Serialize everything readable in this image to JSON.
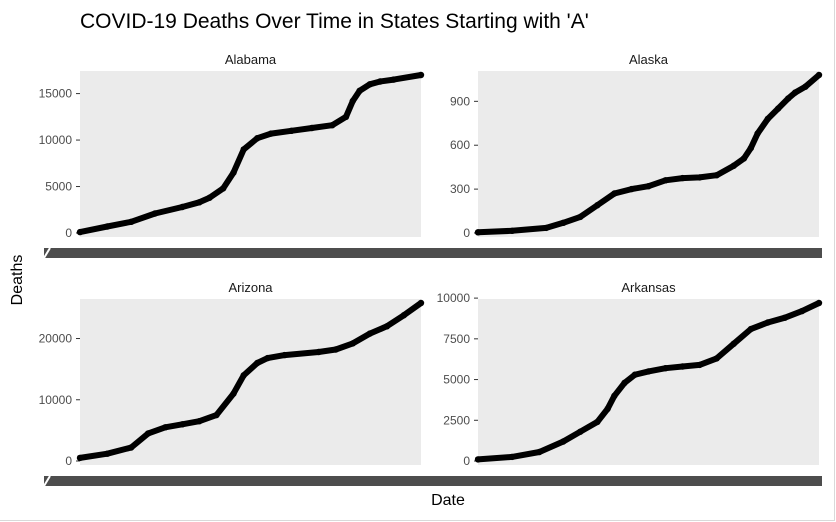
{
  "chart_data": {
    "type": "line",
    "title": "COVID-19 Deaths Over Time in States Starting with 'A'",
    "xlabel": "Date",
    "ylabel": "Deaths",
    "x_ticks_visible": false,
    "grid": false,
    "panel_background": "#ebebeb",
    "line_color": "#000000",
    "facets": [
      {
        "name": "Alabama",
        "ylim": [
          0,
          17000
        ],
        "yticks": [
          "0",
          "5000",
          "10000",
          "15000"
        ],
        "ytick_values": [
          0,
          5000,
          10000,
          15000
        ],
        "x": [
          0,
          0.08,
          0.15,
          0.22,
          0.3,
          0.35,
          0.38,
          0.42,
          0.45,
          0.48,
          0.52,
          0.56,
          0.62,
          0.68,
          0.74,
          0.78,
          0.8,
          0.82,
          0.85,
          0.88,
          0.92,
          1.0
        ],
        "values": [
          100,
          700,
          1200,
          2100,
          2800,
          3300,
          3800,
          4800,
          6500,
          9000,
          10200,
          10700,
          11000,
          11300,
          11600,
          12500,
          14200,
          15300,
          16000,
          16300,
          16500,
          17000
        ]
      },
      {
        "name": "Alaska",
        "ylim": [
          0,
          1080
        ],
        "yticks": [
          "0",
          "300",
          "600",
          "900"
        ],
        "ytick_values": [
          0,
          300,
          600,
          900
        ],
        "x": [
          0,
          0.1,
          0.2,
          0.25,
          0.3,
          0.35,
          0.4,
          0.45,
          0.5,
          0.55,
          0.6,
          0.65,
          0.7,
          0.75,
          0.78,
          0.8,
          0.82,
          0.85,
          0.88,
          0.91,
          0.93,
          0.96,
          1.0
        ],
        "values": [
          5,
          15,
          35,
          70,
          110,
          190,
          270,
          300,
          320,
          360,
          375,
          380,
          395,
          460,
          510,
          580,
          680,
          780,
          850,
          920,
          960,
          1000,
          1080
        ]
      },
      {
        "name": "Arizona",
        "ylim": [
          0,
          25800
        ],
        "yticks": [
          "0",
          "10000",
          "20000"
        ],
        "ytick_values": [
          0,
          10000,
          20000
        ],
        "x": [
          0,
          0.08,
          0.15,
          0.2,
          0.25,
          0.3,
          0.35,
          0.4,
          0.45,
          0.48,
          0.52,
          0.55,
          0.6,
          0.7,
          0.75,
          0.8,
          0.85,
          0.9,
          0.95,
          1.0
        ],
        "values": [
          500,
          1200,
          2200,
          4500,
          5500,
          6000,
          6500,
          7500,
          11000,
          14000,
          16000,
          16800,
          17300,
          17800,
          18200,
          19200,
          20800,
          22000,
          23800,
          25800
        ]
      },
      {
        "name": "Arkansas",
        "ylim": [
          0,
          9700
        ],
        "yticks": [
          "0",
          "2500",
          "5000",
          "7500",
          "10000"
        ],
        "ytick_values": [
          0,
          2500,
          5000,
          7500,
          10000
        ],
        "x": [
          0,
          0.1,
          0.18,
          0.25,
          0.3,
          0.35,
          0.38,
          0.4,
          0.43,
          0.46,
          0.5,
          0.55,
          0.6,
          0.65,
          0.7,
          0.75,
          0.8,
          0.85,
          0.9,
          0.95,
          1.0
        ],
        "values": [
          100,
          250,
          550,
          1200,
          1800,
          2400,
          3200,
          4000,
          4800,
          5300,
          5500,
          5700,
          5800,
          5900,
          6300,
          7200,
          8100,
          8500,
          8800,
          9200,
          9700
        ]
      }
    ]
  }
}
